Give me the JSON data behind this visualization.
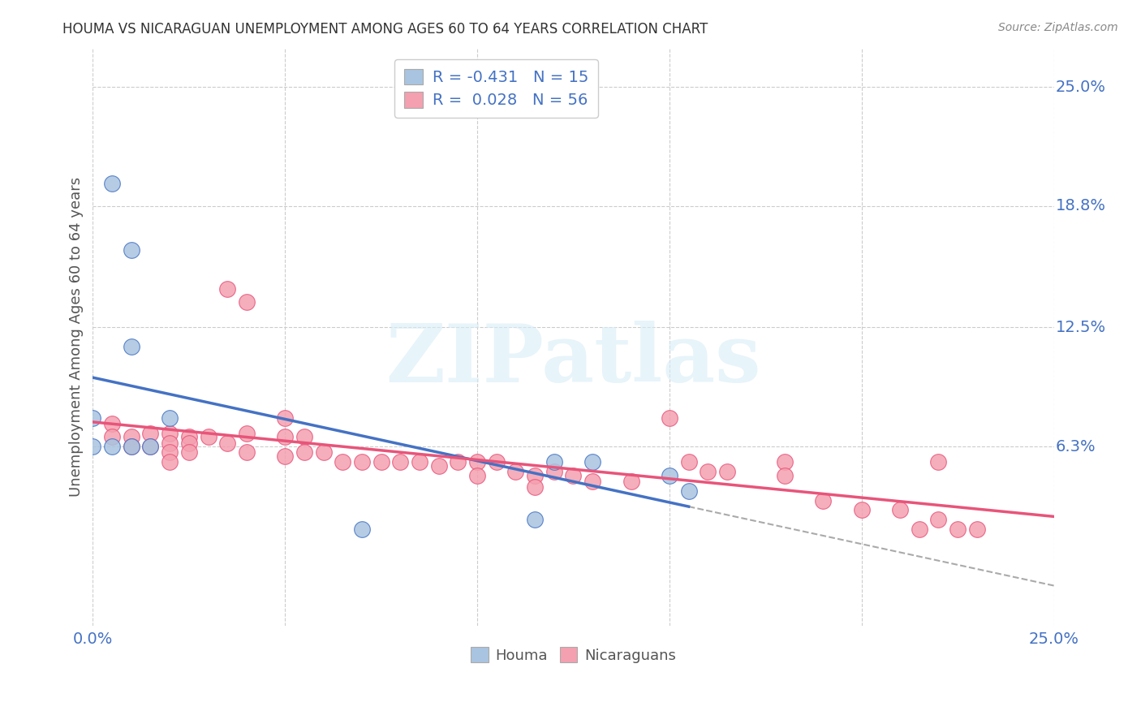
{
  "title": "HOUMA VS NICARAGUAN UNEMPLOYMENT AMONG AGES 60 TO 64 YEARS CORRELATION CHART",
  "source": "Source: ZipAtlas.com",
  "xlabel_bottom_left": "0.0%",
  "xlabel_bottom_right": "25.0%",
  "ylabel": "Unemployment Among Ages 60 to 64 years",
  "ytick_labels": [
    "25.0%",
    "18.8%",
    "12.5%",
    "6.3%"
  ],
  "ytick_values": [
    0.25,
    0.188,
    0.125,
    0.063
  ],
  "xgrid_values": [
    0.0,
    0.05,
    0.1,
    0.15,
    0.2,
    0.25
  ],
  "xmin": 0.0,
  "xmax": 0.25,
  "ymin": -0.03,
  "ymax": 0.27,
  "houma_color": "#a8c4e0",
  "nicaraguan_color": "#f4a0b0",
  "houma_line_color": "#4472c4",
  "nicaraguan_line_color": "#e8547a",
  "houma_R": -0.431,
  "houma_N": 15,
  "nicaraguan_R": 0.028,
  "nicaraguan_N": 56,
  "watermark_text": "ZIPatlas",
  "legend_color": "#4472c4",
  "houma_scatter": [
    [
      0.005,
      0.2
    ],
    [
      0.01,
      0.165
    ],
    [
      0.01,
      0.115
    ],
    [
      0.0,
      0.078
    ],
    [
      0.02,
      0.078
    ],
    [
      0.0,
      0.063
    ],
    [
      0.005,
      0.063
    ],
    [
      0.01,
      0.063
    ],
    [
      0.015,
      0.063
    ],
    [
      0.12,
      0.055
    ],
    [
      0.13,
      0.055
    ],
    [
      0.15,
      0.048
    ],
    [
      0.155,
      0.04
    ],
    [
      0.115,
      0.025
    ],
    [
      0.07,
      0.02
    ]
  ],
  "nicaraguan_scatter": [
    [
      0.005,
      0.075
    ],
    [
      0.005,
      0.068
    ],
    [
      0.01,
      0.068
    ],
    [
      0.01,
      0.063
    ],
    [
      0.015,
      0.07
    ],
    [
      0.015,
      0.063
    ],
    [
      0.02,
      0.07
    ],
    [
      0.02,
      0.065
    ],
    [
      0.02,
      0.06
    ],
    [
      0.02,
      0.055
    ],
    [
      0.025,
      0.068
    ],
    [
      0.025,
      0.065
    ],
    [
      0.025,
      0.06
    ],
    [
      0.03,
      0.068
    ],
    [
      0.035,
      0.145
    ],
    [
      0.035,
      0.065
    ],
    [
      0.04,
      0.138
    ],
    [
      0.04,
      0.07
    ],
    [
      0.04,
      0.06
    ],
    [
      0.05,
      0.078
    ],
    [
      0.05,
      0.068
    ],
    [
      0.05,
      0.058
    ],
    [
      0.055,
      0.068
    ],
    [
      0.055,
      0.06
    ],
    [
      0.06,
      0.06
    ],
    [
      0.065,
      0.055
    ],
    [
      0.07,
      0.055
    ],
    [
      0.075,
      0.055
    ],
    [
      0.08,
      0.055
    ],
    [
      0.085,
      0.055
    ],
    [
      0.09,
      0.053
    ],
    [
      0.095,
      0.055
    ],
    [
      0.1,
      0.055
    ],
    [
      0.1,
      0.048
    ],
    [
      0.105,
      0.055
    ],
    [
      0.11,
      0.05
    ],
    [
      0.115,
      0.048
    ],
    [
      0.115,
      0.042
    ],
    [
      0.12,
      0.05
    ],
    [
      0.125,
      0.048
    ],
    [
      0.13,
      0.045
    ],
    [
      0.14,
      0.045
    ],
    [
      0.15,
      0.078
    ],
    [
      0.155,
      0.055
    ],
    [
      0.16,
      0.05
    ],
    [
      0.165,
      0.05
    ],
    [
      0.18,
      0.055
    ],
    [
      0.18,
      0.048
    ],
    [
      0.19,
      0.035
    ],
    [
      0.2,
      0.03
    ],
    [
      0.21,
      0.03
    ],
    [
      0.215,
      0.02
    ],
    [
      0.22,
      0.025
    ],
    [
      0.225,
      0.02
    ],
    [
      0.22,
      0.055
    ],
    [
      0.23,
      0.02
    ]
  ],
  "houma_line": {
    "x0": 0.0,
    "x1": 0.155,
    "dash_x0": 0.155,
    "dash_x1": 0.25
  },
  "nicaraguan_line": {
    "x0": 0.0,
    "x1": 0.25
  }
}
